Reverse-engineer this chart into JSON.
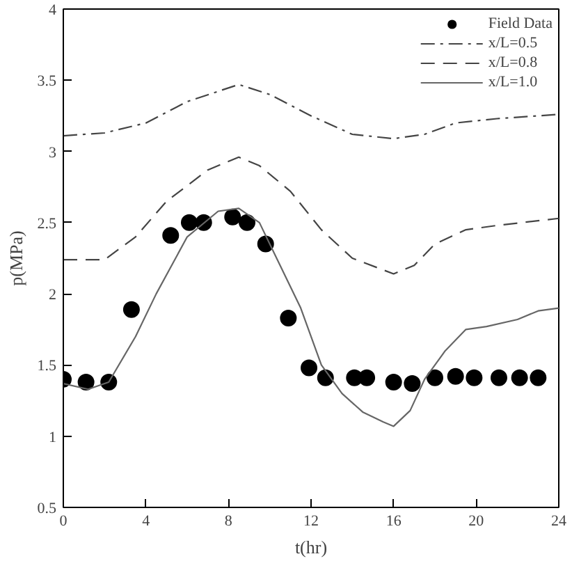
{
  "chart_data": {
    "type": "line",
    "xlabel": "t(hr)",
    "ylabel": "p(MPa)",
    "xlim": [
      0,
      24
    ],
    "xticks": [
      0,
      4,
      8,
      12,
      16,
      20,
      24
    ],
    "ylim": [
      0.5,
      4
    ],
    "yticks": [
      0.5,
      1,
      1.5,
      2,
      2.5,
      3,
      3.5,
      4
    ],
    "grid": false,
    "legend": "top right",
    "series": [
      {
        "name": "Field Data",
        "type": "scatter",
        "marker": "circle",
        "color": "#000000",
        "x": [
          0,
          1.1,
          2.2,
          3.3,
          5.2,
          6.1,
          6.8,
          8.2,
          8.9,
          9.8,
          10.9,
          11.9,
          12.7,
          14.1,
          14.7,
          16.0,
          16.9,
          18.0,
          19.0,
          19.9,
          21.1,
          22.1,
          23.0
        ],
        "values": [
          1.4,
          1.38,
          1.38,
          1.89,
          2.41,
          2.5,
          2.5,
          2.54,
          2.5,
          2.35,
          1.83,
          1.48,
          1.41,
          1.41,
          1.41,
          1.38,
          1.37,
          1.41,
          1.42,
          1.41,
          1.41,
          1.41,
          1.41
        ]
      },
      {
        "name": "x/L=0.5",
        "line_style": "dashdot",
        "color": "#444444",
        "x": [
          0,
          2,
          4,
          6,
          8.5,
          10,
          12,
          14,
          16,
          17.5,
          19,
          21,
          24
        ],
        "values": [
          3.11,
          3.13,
          3.2,
          3.35,
          3.47,
          3.4,
          3.25,
          3.12,
          3.09,
          3.12,
          3.2,
          3.23,
          3.26
        ]
      },
      {
        "name": "x/L=0.8",
        "line_style": "dashed",
        "color": "#444444",
        "x": [
          0,
          2,
          3.5,
          5,
          7,
          8.5,
          9.5,
          11,
          12.5,
          14,
          16,
          17,
          18,
          19.5,
          21,
          24
        ],
        "values": [
          2.24,
          2.24,
          2.4,
          2.65,
          2.87,
          2.96,
          2.9,
          2.72,
          2.45,
          2.25,
          2.14,
          2.2,
          2.35,
          2.45,
          2.48,
          2.53
        ]
      },
      {
        "name": "x/L=1.0",
        "line_style": "solid",
        "color": "#666666",
        "x": [
          0,
          1.2,
          2.2,
          3.5,
          4.5,
          6,
          7.5,
          8.5,
          9.5,
          10.5,
          11.5,
          12.5,
          13.5,
          14.5,
          15.5,
          16,
          16.8,
          17.5,
          18.5,
          19.5,
          20.5,
          22,
          23,
          24
        ],
        "values": [
          1.37,
          1.33,
          1.38,
          1.7,
          2.0,
          2.4,
          2.58,
          2.6,
          2.5,
          2.2,
          1.9,
          1.5,
          1.3,
          1.17,
          1.1,
          1.07,
          1.18,
          1.4,
          1.6,
          1.75,
          1.77,
          1.82,
          1.88,
          1.9
        ]
      }
    ]
  }
}
